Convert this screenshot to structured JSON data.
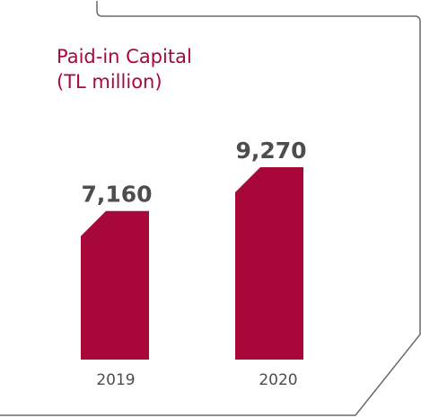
{
  "colors": {
    "accent": "#A8073A",
    "value_text": "#4D4D4D",
    "tick_text": "#4D4D4D",
    "frame": "#6A6A6A"
  },
  "chart_data": {
    "type": "bar",
    "title": "Paid-in Capital",
    "subtitle": "(TL million)",
    "categories": [
      "2019",
      "2020"
    ],
    "values": [
      7160,
      9270
    ],
    "value_labels": [
      "7,160",
      "9,270"
    ],
    "grid": false,
    "legend": "none"
  }
}
